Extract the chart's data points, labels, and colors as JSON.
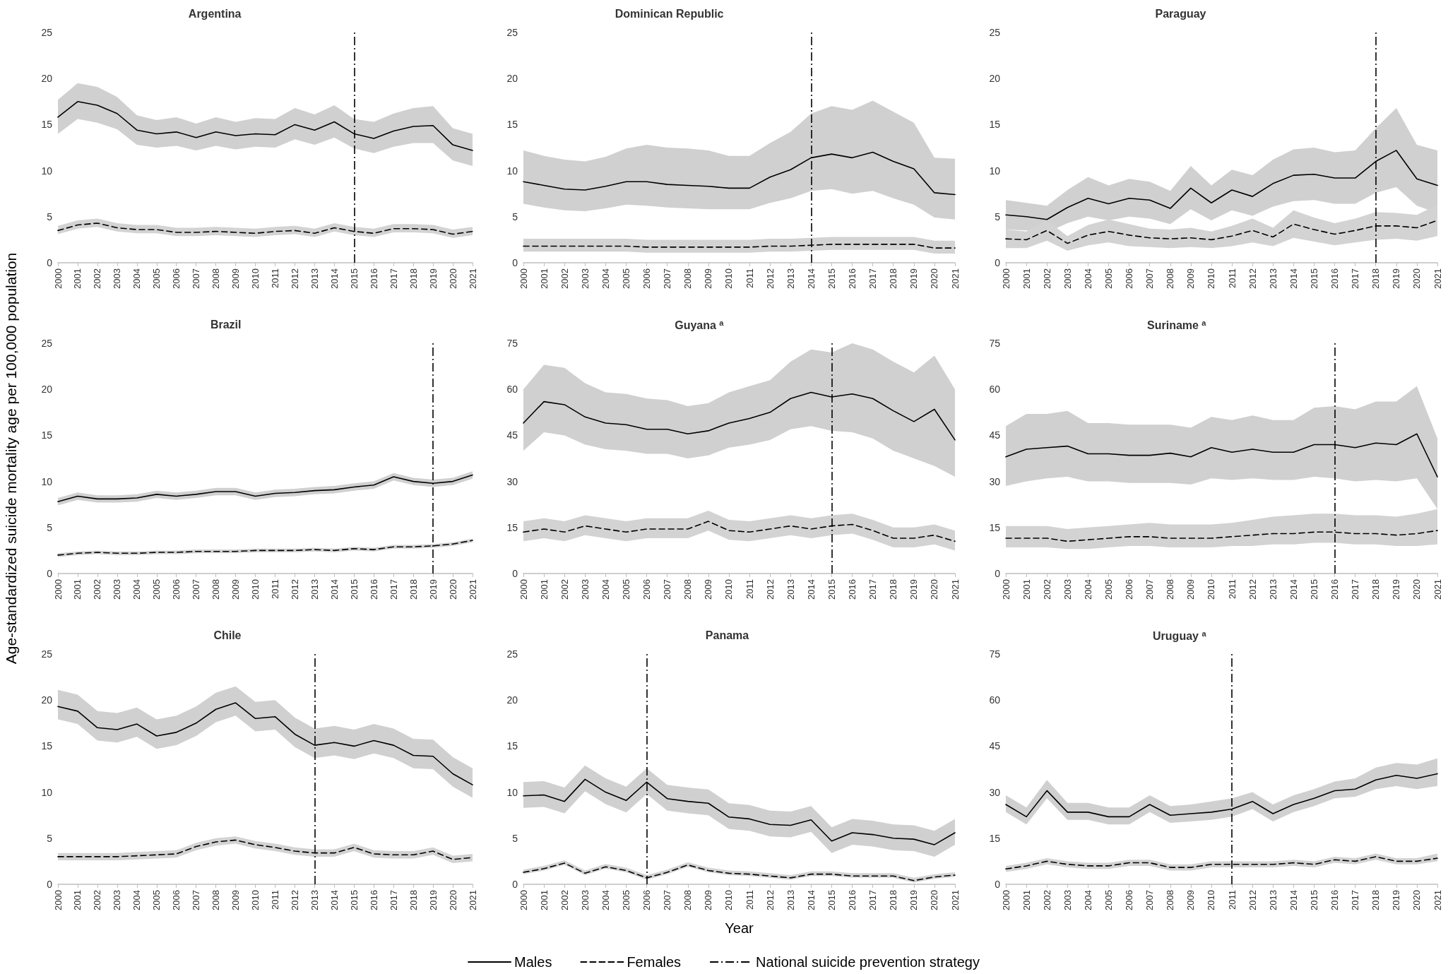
{
  "chart_data": [
    {
      "type": "line",
      "title": "Argentina",
      "categories": [
        "2000",
        "2001",
        "2002",
        "2003",
        "2004",
        "2005",
        "2006",
        "2007",
        "2008",
        "2009",
        "2010",
        "2011",
        "2012",
        "2013",
        "2014",
        "2015",
        "2016",
        "2017",
        "2018",
        "2019",
        "2020",
        "2021"
      ],
      "ylim": [
        0,
        25
      ],
      "yticks": [
        0,
        5,
        10,
        15,
        20,
        25
      ],
      "ref_lines": [
        {
          "axis": "x",
          "value": "2015"
        }
      ],
      "series": [
        {
          "color": "#000000",
          "line_style": "solid",
          "values": [
            15.8,
            17.5,
            17.1,
            16.2,
            14.4,
            14.0,
            14.2,
            13.6,
            14.2,
            13.8,
            14.0,
            13.9,
            15.0,
            14.4,
            15.3,
            14.0,
            13.5,
            14.3,
            14.8,
            14.9,
            12.8,
            12.2
          ],
          "upper": [
            17.7,
            19.5,
            19.1,
            18.0,
            16.0,
            15.5,
            15.8,
            15.1,
            15.8,
            15.3,
            15.7,
            15.6,
            16.8,
            16.1,
            17.1,
            15.6,
            15.3,
            16.2,
            16.8,
            17.0,
            14.6,
            14.0
          ],
          "lower": [
            14.0,
            15.6,
            15.2,
            14.5,
            12.8,
            12.5,
            12.7,
            12.2,
            12.7,
            12.3,
            12.6,
            12.5,
            13.4,
            12.8,
            13.6,
            12.4,
            11.9,
            12.6,
            13.0,
            13.0,
            11.1,
            10.5
          ]
        },
        {
          "color": "#000000",
          "line_style": "dashed",
          "values": [
            3.5,
            4.1,
            4.3,
            3.8,
            3.6,
            3.6,
            3.3,
            3.3,
            3.4,
            3.3,
            3.2,
            3.4,
            3.5,
            3.2,
            3.8,
            3.4,
            3.2,
            3.7,
            3.7,
            3.6,
            3.1,
            3.4
          ],
          "upper": [
            4.0,
            4.6,
            4.8,
            4.3,
            4.1,
            4.1,
            3.8,
            3.8,
            3.9,
            3.8,
            3.7,
            3.9,
            4.0,
            3.7,
            4.3,
            3.9,
            3.7,
            4.2,
            4.2,
            4.1,
            3.6,
            3.9
          ],
          "lower": [
            3.1,
            3.7,
            3.9,
            3.4,
            3.2,
            3.2,
            2.9,
            2.9,
            3.0,
            2.9,
            2.8,
            3.0,
            3.1,
            2.8,
            3.4,
            3.0,
            2.8,
            3.3,
            3.3,
            3.2,
            2.7,
            3.0
          ]
        }
      ]
    },
    {
      "type": "line",
      "title": "Dominican Republic",
      "categories": [
        "2000",
        "2001",
        "2002",
        "2003",
        "2004",
        "2005",
        "2006",
        "2007",
        "2008",
        "2009",
        "2010",
        "2011",
        "2012",
        "2013",
        "2014",
        "2015",
        "2016",
        "2017",
        "2018",
        "2019",
        "2020",
        "2021"
      ],
      "ylim": [
        0,
        25
      ],
      "yticks": [
        0,
        5,
        10,
        15,
        20,
        25
      ],
      "ref_lines": [
        {
          "axis": "x",
          "value": "2014"
        }
      ],
      "series": [
        {
          "color": "#000000",
          "line_style": "solid",
          "values": [
            8.8,
            8.4,
            8.0,
            7.9,
            8.3,
            8.8,
            8.8,
            8.5,
            8.4,
            8.3,
            8.1,
            8.1,
            9.3,
            10.1,
            11.4,
            11.8,
            11.4,
            12.0,
            11.0,
            10.2,
            7.6,
            7.4
          ],
          "upper": [
            12.2,
            11.6,
            11.2,
            11.0,
            11.5,
            12.4,
            12.8,
            12.5,
            12.4,
            12.2,
            11.6,
            11.6,
            13.0,
            14.2,
            16.2,
            17.0,
            16.6,
            17.6,
            16.4,
            15.2,
            11.4,
            11.3
          ],
          "lower": [
            6.4,
            6.0,
            5.7,
            5.6,
            5.9,
            6.3,
            6.2,
            6.0,
            5.9,
            5.8,
            5.8,
            5.8,
            6.5,
            7.0,
            7.8,
            8.0,
            7.5,
            7.8,
            7.0,
            6.3,
            4.9,
            4.7
          ]
        },
        {
          "color": "#000000",
          "line_style": "dashed",
          "values": [
            1.8,
            1.8,
            1.8,
            1.8,
            1.8,
            1.8,
            1.7,
            1.7,
            1.7,
            1.7,
            1.7,
            1.7,
            1.8,
            1.8,
            1.9,
            2.0,
            2.0,
            2.0,
            2.0,
            2.0,
            1.6,
            1.6
          ],
          "upper": [
            2.6,
            2.6,
            2.6,
            2.6,
            2.6,
            2.6,
            2.5,
            2.5,
            2.5,
            2.5,
            2.5,
            2.5,
            2.6,
            2.6,
            2.7,
            2.8,
            2.8,
            2.8,
            2.8,
            2.8,
            2.4,
            2.4
          ],
          "lower": [
            1.2,
            1.2,
            1.2,
            1.2,
            1.2,
            1.2,
            1.1,
            1.1,
            1.1,
            1.1,
            1.1,
            1.1,
            1.2,
            1.2,
            1.3,
            1.4,
            1.4,
            1.4,
            1.4,
            1.4,
            1.0,
            1.0
          ]
        }
      ]
    },
    {
      "type": "line",
      "title": "Paraguay",
      "categories": [
        "2000",
        "2001",
        "2002",
        "2003",
        "2004",
        "2005",
        "2006",
        "2007",
        "2008",
        "2009",
        "2010",
        "2011",
        "2012",
        "2013",
        "2014",
        "2015",
        "2016",
        "2017",
        "2018",
        "2019",
        "2020",
        "2021"
      ],
      "ylim": [
        0,
        25
      ],
      "yticks": [
        0,
        5,
        10,
        15,
        20,
        25
      ],
      "ref_lines": [
        {
          "axis": "x",
          "value": "2018"
        }
      ],
      "series": [
        {
          "color": "#000000",
          "line_style": "solid",
          "values": [
            5.2,
            5.0,
            4.7,
            6.0,
            7.0,
            6.4,
            7.0,
            6.8,
            5.9,
            8.1,
            6.5,
            7.9,
            7.2,
            8.6,
            9.5,
            9.6,
            9.2,
            9.2,
            11.0,
            12.2,
            9.1,
            8.4
          ],
          "upper": [
            6.8,
            6.5,
            6.2,
            7.9,
            9.3,
            8.4,
            9.1,
            8.8,
            7.8,
            10.5,
            8.4,
            10.1,
            9.5,
            11.2,
            12.3,
            12.5,
            12.0,
            12.2,
            14.6,
            16.8,
            12.8,
            12.2
          ],
          "lower": [
            3.6,
            3.5,
            3.3,
            4.3,
            5.0,
            4.6,
            5.0,
            4.8,
            4.2,
            5.8,
            4.6,
            5.7,
            5.1,
            6.1,
            6.7,
            6.8,
            6.4,
            6.4,
            7.6,
            8.2,
            6.2,
            5.4
          ]
        },
        {
          "color": "#000000",
          "line_style": "dashed",
          "values": [
            2.6,
            2.5,
            3.5,
            2.1,
            3.0,
            3.4,
            3.0,
            2.7,
            2.6,
            2.7,
            2.5,
            2.9,
            3.5,
            2.8,
            4.2,
            3.6,
            3.1,
            3.5,
            4.0,
            4.0,
            3.8,
            4.6
          ],
          "upper": [
            3.6,
            3.4,
            4.6,
            2.9,
            4.1,
            4.7,
            4.2,
            3.7,
            3.6,
            3.8,
            3.4,
            4.0,
            4.8,
            3.8,
            5.7,
            4.9,
            4.3,
            4.8,
            5.5,
            5.4,
            5.2,
            6.3
          ],
          "lower": [
            1.6,
            1.6,
            2.4,
            1.3,
            1.9,
            2.2,
            1.8,
            1.7,
            1.6,
            1.7,
            1.6,
            1.8,
            2.2,
            1.8,
            2.7,
            2.3,
            1.9,
            2.2,
            2.5,
            2.6,
            2.4,
            2.9
          ]
        }
      ]
    },
    {
      "type": "line",
      "title": "Brazil",
      "ylabel": "Age-standardized suicide mortality age per 100,000 population",
      "categories": [
        "2000",
        "2001",
        "2002",
        "2003",
        "2004",
        "2005",
        "2006",
        "2007",
        "2008",
        "2009",
        "2010",
        "2011",
        "2012",
        "2013",
        "2014",
        "2015",
        "2016",
        "2017",
        "2018",
        "2019",
        "2020",
        "2021"
      ],
      "ylim": [
        0,
        25
      ],
      "yticks": [
        0,
        5,
        10,
        15,
        20,
        25
      ],
      "ref_lines": [
        {
          "axis": "x",
          "value": "2019"
        }
      ],
      "series": [
        {
          "color": "#000000",
          "line_style": "solid",
          "values": [
            7.8,
            8.4,
            8.1,
            8.1,
            8.2,
            8.6,
            8.4,
            8.6,
            8.9,
            8.9,
            8.4,
            8.7,
            8.8,
            9.0,
            9.1,
            9.4,
            9.6,
            10.5,
            10.0,
            9.8,
            10.0,
            10.7
          ],
          "upper": [
            8.2,
            8.8,
            8.5,
            8.5,
            8.6,
            9.0,
            8.8,
            9.0,
            9.3,
            9.3,
            8.8,
            9.1,
            9.2,
            9.4,
            9.5,
            9.8,
            10.0,
            10.9,
            10.4,
            10.2,
            10.4,
            11.1
          ],
          "lower": [
            7.4,
            8.0,
            7.7,
            7.7,
            7.8,
            8.2,
            8.0,
            8.2,
            8.5,
            8.5,
            8.0,
            8.3,
            8.4,
            8.6,
            8.7,
            9.0,
            9.2,
            10.1,
            9.6,
            9.4,
            9.6,
            10.3
          ]
        },
        {
          "color": "#000000",
          "line_style": "dashed",
          "values": [
            2.0,
            2.2,
            2.3,
            2.2,
            2.2,
            2.3,
            2.3,
            2.4,
            2.4,
            2.4,
            2.5,
            2.5,
            2.5,
            2.6,
            2.5,
            2.7,
            2.6,
            2.9,
            2.9,
            3.0,
            3.2,
            3.6
          ],
          "upper": [
            2.2,
            2.4,
            2.5,
            2.4,
            2.4,
            2.5,
            2.5,
            2.6,
            2.6,
            2.6,
            2.7,
            2.7,
            2.7,
            2.8,
            2.7,
            2.9,
            2.8,
            3.1,
            3.1,
            3.2,
            3.4,
            3.8
          ],
          "lower": [
            1.8,
            2.0,
            2.1,
            2.0,
            2.0,
            2.1,
            2.1,
            2.2,
            2.2,
            2.2,
            2.3,
            2.3,
            2.3,
            2.4,
            2.3,
            2.5,
            2.4,
            2.7,
            2.7,
            2.8,
            3.0,
            3.4
          ]
        }
      ]
    },
    {
      "type": "line",
      "title": "Guyana $^{a}$",
      "categories": [
        "2000",
        "2001",
        "2002",
        "2003",
        "2004",
        "2005",
        "2006",
        "2007",
        "2008",
        "2009",
        "2010",
        "2011",
        "2012",
        "2013",
        "2014",
        "2015",
        "2016",
        "2017",
        "2018",
        "2019",
        "2020",
        "2021"
      ],
      "ylim": [
        0,
        75
      ],
      "yticks": [
        0,
        15,
        30,
        45,
        60,
        75
      ],
      "ref_lines": [
        {
          "axis": "x",
          "value": "2015"
        }
      ],
      "series": [
        {
          "color": "#000000",
          "line_style": "solid",
          "values": [
            49,
            56,
            55,
            51,
            49,
            48.5,
            47,
            47,
            45.5,
            46.5,
            49,
            50.5,
            52.5,
            57,
            59,
            57.5,
            58.5,
            57,
            53,
            49.5,
            53.5,
            43.5
          ],
          "upper": [
            60,
            68,
            67,
            62,
            59,
            58.5,
            57,
            56.5,
            54.5,
            55.5,
            59,
            61,
            63,
            69,
            73,
            72,
            75,
            73,
            69,
            65.5,
            71,
            60
          ],
          "lower": [
            40,
            46,
            45,
            42,
            40.5,
            40,
            39,
            39,
            37.5,
            38.5,
            41,
            42,
            43.5,
            47,
            48,
            46.5,
            46,
            44,
            40,
            37.5,
            35,
            31.5
          ]
        },
        {
          "color": "#000000",
          "line_style": "dashed",
          "values": [
            13.5,
            14.5,
            13.5,
            15.5,
            14.5,
            13.5,
            14.5,
            14.5,
            14.5,
            17,
            14,
            13.5,
            14.5,
            15.5,
            14.5,
            15.5,
            16,
            14,
            11.5,
            11.5,
            12.5,
            10.5
          ],
          "upper": [
            17,
            18,
            17,
            19,
            18,
            17,
            18,
            18,
            18,
            20.5,
            17.5,
            17,
            18,
            19,
            18,
            19,
            19.5,
            17.5,
            15,
            15,
            16,
            14
          ],
          "lower": [
            10.5,
            11.5,
            10.5,
            12.5,
            11.5,
            10.5,
            11.5,
            11.5,
            11.5,
            14,
            11,
            10.5,
            11.5,
            12.5,
            11.5,
            12.5,
            13,
            11,
            8.5,
            8.5,
            9.5,
            7.5
          ]
        }
      ]
    },
    {
      "type": "line",
      "title": "Suriname $^{a}$",
      "categories": [
        "2000",
        "2001",
        "2002",
        "2003",
        "2004",
        "2005",
        "2006",
        "2007",
        "2008",
        "2009",
        "2010",
        "2011",
        "2012",
        "2013",
        "2014",
        "2015",
        "2016",
        "2017",
        "2018",
        "2019",
        "2020",
        "2021"
      ],
      "ylim": [
        0,
        75
      ],
      "yticks": [
        0,
        15,
        30,
        45,
        60,
        75
      ],
      "ref_lines": [
        {
          "axis": "x",
          "value": "2016"
        }
      ],
      "series": [
        {
          "color": "#000000",
          "line_style": "solid",
          "values": [
            38,
            40.5,
            41,
            41.5,
            39,
            39,
            38.5,
            38.5,
            39.2,
            38,
            41,
            39.5,
            40.5,
            39.5,
            39.5,
            42,
            42,
            41,
            42.5,
            42,
            45.5,
            31.5
          ],
          "upper": [
            48,
            52,
            52,
            53,
            49,
            49,
            48.5,
            48.5,
            48.5,
            47.5,
            51,
            50,
            51.5,
            50,
            50,
            54,
            54.5,
            53.5,
            56,
            56,
            61,
            44
          ],
          "lower": [
            28.5,
            30,
            31,
            31.5,
            30,
            30,
            29.5,
            29.5,
            29.5,
            29,
            31,
            30.5,
            31,
            30.5,
            30.5,
            31.5,
            31,
            30,
            30.5,
            30,
            31,
            21
          ]
        },
        {
          "color": "#000000",
          "line_style": "dashed",
          "values": [
            11.5,
            11.5,
            11.5,
            10.5,
            11,
            11.5,
            12,
            12,
            11.5,
            11.5,
            11.5,
            12,
            12.5,
            13,
            13,
            13.5,
            13.5,
            13,
            13,
            12.5,
            13,
            14
          ],
          "upper": [
            15.5,
            15.5,
            15.5,
            14.5,
            15,
            15.5,
            16,
            16.5,
            16,
            16,
            16,
            16.5,
            17.5,
            18.5,
            19,
            19.5,
            19.5,
            19,
            19,
            18.5,
            19.5,
            21
          ],
          "lower": [
            8.5,
            8.5,
            8.5,
            8,
            8,
            8.5,
            9,
            9,
            8.5,
            8.5,
            8.5,
            9,
            9,
            9.5,
            9.5,
            10,
            10,
            9.5,
            9.5,
            9,
            9,
            9.5
          ]
        }
      ]
    },
    {
      "type": "line",
      "title": "Chile",
      "categories": [
        "2000",
        "2001",
        "2002",
        "2003",
        "2004",
        "2005",
        "2006",
        "2007",
        "2008",
        "2009",
        "2010",
        "2011",
        "2012",
        "2013",
        "2014",
        "2015",
        "2016",
        "2017",
        "2018",
        "2019",
        "2020",
        "2021"
      ],
      "ylim": [
        0,
        25
      ],
      "yticks": [
        0,
        5,
        10,
        15,
        20,
        25
      ],
      "ref_lines": [
        {
          "axis": "x",
          "value": "2013"
        }
      ],
      "series": [
        {
          "color": "#000000",
          "line_style": "solid",
          "values": [
            19.3,
            18.8,
            17.0,
            16.8,
            17.4,
            16.1,
            16.5,
            17.5,
            19.0,
            19.7,
            18.0,
            18.2,
            16.3,
            15.1,
            15.4,
            15.0,
            15.6,
            15.1,
            14.0,
            13.9,
            12.0,
            10.8
          ],
          "upper": [
            21.1,
            20.6,
            18.8,
            18.6,
            19.2,
            17.9,
            18.3,
            19.3,
            20.8,
            21.5,
            19.8,
            20.0,
            18.1,
            16.9,
            17.2,
            16.8,
            17.4,
            16.9,
            15.8,
            15.7,
            13.8,
            12.6
          ],
          "lower": [
            17.9,
            17.4,
            15.6,
            15.4,
            16.0,
            14.7,
            15.1,
            16.1,
            17.6,
            18.3,
            16.6,
            16.8,
            14.9,
            13.7,
            14.0,
            13.6,
            14.2,
            13.7,
            12.6,
            12.5,
            10.6,
            9.4
          ]
        },
        {
          "color": "#000000",
          "line_style": "dashed",
          "values": [
            3.0,
            3.0,
            3.0,
            3.0,
            3.1,
            3.2,
            3.3,
            4.1,
            4.6,
            4.8,
            4.3,
            4.0,
            3.6,
            3.4,
            3.4,
            4.0,
            3.3,
            3.2,
            3.2,
            3.6,
            2.7,
            2.9
          ],
          "upper": [
            3.4,
            3.4,
            3.4,
            3.4,
            3.5,
            3.6,
            3.7,
            4.5,
            5.0,
            5.2,
            4.7,
            4.4,
            4.0,
            3.8,
            3.8,
            4.4,
            3.7,
            3.6,
            3.6,
            4.0,
            3.1,
            3.3
          ],
          "lower": [
            2.6,
            2.6,
            2.6,
            2.6,
            2.7,
            2.8,
            2.9,
            3.7,
            4.2,
            4.4,
            3.9,
            3.6,
            3.2,
            3.0,
            3.0,
            3.6,
            2.9,
            2.8,
            2.8,
            3.2,
            2.3,
            2.5
          ]
        }
      ]
    },
    {
      "type": "line",
      "title": "Panama",
      "xlabel": "Year",
      "legend": "bottom",
      "categories": [
        "2000",
        "2001",
        "2002",
        "2003",
        "2004",
        "2005",
        "2006",
        "2007",
        "2008",
        "2009",
        "2010",
        "2011",
        "2012",
        "2013",
        "2014",
        "2015",
        "2016",
        "2017",
        "2018",
        "2019",
        "2020",
        "2021"
      ],
      "ylim": [
        0,
        25
      ],
      "yticks": [
        0,
        5,
        10,
        15,
        20,
        25
      ],
      "ref_lines": [
        {
          "axis": "x",
          "value": "2006",
          "label": "National suicide prevention strategy"
        }
      ],
      "series": [
        {
          "name": "Males",
          "color": "#000000",
          "line_style": "solid",
          "values": [
            9.6,
            9.7,
            9.0,
            11.4,
            10.0,
            9.1,
            11.1,
            9.3,
            9.0,
            8.8,
            7.3,
            7.1,
            6.5,
            6.4,
            7.0,
            4.7,
            5.6,
            5.4,
            5.0,
            4.9,
            4.3,
            5.6
          ],
          "upper": [
            11.1,
            11.2,
            10.5,
            12.9,
            11.5,
            10.6,
            12.6,
            10.8,
            10.5,
            10.3,
            8.8,
            8.6,
            8.0,
            7.9,
            8.5,
            6.2,
            7.1,
            6.9,
            6.5,
            6.4,
            5.8,
            7.1
          ],
          "lower": [
            8.3,
            8.4,
            7.7,
            10.1,
            8.7,
            7.8,
            9.8,
            8.0,
            7.7,
            7.5,
            6.0,
            5.8,
            5.2,
            5.1,
            5.7,
            3.4,
            4.3,
            4.1,
            3.7,
            3.6,
            3.0,
            4.3
          ]
        },
        {
          "name": "Females",
          "color": "#000000",
          "line_style": "dashed",
          "values": [
            1.3,
            1.7,
            2.3,
            1.2,
            1.9,
            1.5,
            0.7,
            1.3,
            2.1,
            1.5,
            1.2,
            1.1,
            0.9,
            0.7,
            1.1,
            1.1,
            0.9,
            0.9,
            0.9,
            0.4,
            0.8,
            1.0
          ],
          "upper": [
            1.6,
            2.0,
            2.6,
            1.5,
            2.2,
            1.8,
            1.0,
            1.6,
            2.4,
            1.8,
            1.5,
            1.4,
            1.2,
            1.0,
            1.4,
            1.4,
            1.2,
            1.2,
            1.2,
            0.7,
            1.1,
            1.3
          ],
          "lower": [
            1.1,
            1.5,
            2.1,
            1.0,
            1.7,
            1.3,
            0.5,
            1.1,
            1.9,
            1.3,
            1.0,
            0.9,
            0.7,
            0.5,
            0.9,
            0.9,
            0.7,
            0.7,
            0.7,
            0.2,
            0.6,
            0.8
          ]
        }
      ]
    },
    {
      "type": "line",
      "title": "Uruguay $^{a}$",
      "categories": [
        "2000",
        "2001",
        "2002",
        "2003",
        "2004",
        "2005",
        "2006",
        "2007",
        "2008",
        "2009",
        "2010",
        "2011",
        "2012",
        "2013",
        "2014",
        "2015",
        "2016",
        "2017",
        "2018",
        "2019",
        "2020",
        "2021"
      ],
      "ylim": [
        0,
        75
      ],
      "yticks": [
        0,
        15,
        30,
        45,
        60,
        75
      ],
      "ref_lines": [
        {
          "axis": "x",
          "value": "2011"
        }
      ],
      "series": [
        {
          "color": "#000000",
          "line_style": "solid",
          "values": [
            26,
            22,
            30.5,
            23.5,
            23.5,
            22,
            22,
            26,
            22.5,
            23,
            23.5,
            24.5,
            27,
            23,
            26,
            28,
            30.5,
            31,
            34,
            35.5,
            34.5,
            36
          ],
          "upper": [
            29,
            25,
            34,
            26.5,
            26.5,
            25,
            25,
            29,
            25.5,
            26,
            27,
            28,
            30,
            26,
            29,
            31,
            33.5,
            34.5,
            38,
            39.5,
            39,
            41
          ],
          "lower": [
            23.5,
            19.5,
            28,
            21,
            21,
            19.5,
            19.5,
            23.5,
            20,
            20.5,
            21,
            22,
            24.5,
            20.5,
            23.5,
            25.5,
            28,
            28.5,
            31,
            32,
            31,
            32
          ]
        },
        {
          "color": "#000000",
          "line_style": "dashed",
          "values": [
            5,
            6,
            7.5,
            6.5,
            6,
            6,
            7,
            7,
            5.5,
            5.5,
            6.5,
            6.5,
            6.5,
            6.5,
            7,
            6.5,
            8,
            7.5,
            9,
            7.5,
            7.5,
            8.5
          ],
          "upper": [
            6,
            7,
            8.5,
            7.5,
            7,
            7,
            8,
            8,
            6.5,
            6.5,
            7.5,
            7.5,
            7.5,
            7.5,
            8,
            7.5,
            9,
            8.5,
            10,
            8.5,
            8.5,
            10
          ],
          "lower": [
            4,
            5,
            6.5,
            5.5,
            5,
            5,
            6,
            6,
            4.5,
            4.5,
            5.5,
            5.5,
            5.5,
            5.5,
            6,
            5.5,
            7,
            6.5,
            8,
            6.5,
            6.5,
            7.5
          ]
        }
      ]
    }
  ]
}
